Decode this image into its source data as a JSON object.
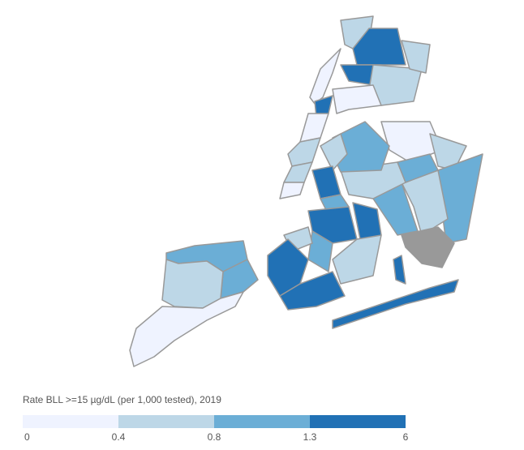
{
  "map": {
    "legend": {
      "title": "Rate BLL >=15 µg/dL (per 1,000 tested), 2019",
      "breaks": [
        0,
        0.4,
        0.8,
        1.3,
        6
      ],
      "colors": [
        "#eff3ff",
        "#bdd7e7",
        "#6baed6",
        "#2171b5"
      ]
    }
  }
}
